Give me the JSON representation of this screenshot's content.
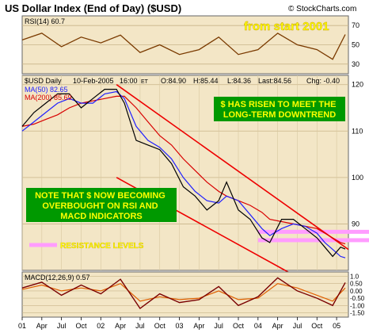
{
  "chart_data": {
    "type": "line",
    "title": "US Dollar Index (End of Day) ($USD)",
    "watermark": "© StockCharts.com",
    "headline_note": "from start 2001",
    "price_panel": {
      "label": "$USD Daily",
      "date": "10-Feb-2005",
      "time": "16:00",
      "time_zone": "ET",
      "open": "O:84.90",
      "high": "H:85.44",
      "low": "L:84.36",
      "last": "Last:84.56",
      "change": "Chg: -0.40",
      "ma50_label": "MA(50) 82.65",
      "ma200_label": "MA(200) 85.69",
      "y_ticks": [
        "120",
        "110",
        "100",
        "90"
      ],
      "ylim": [
        80,
        122
      ],
      "x": [
        2001.0,
        2001.15,
        2001.3,
        2001.45,
        2001.6,
        2001.75,
        2001.9,
        2002.05,
        2002.2,
        2002.3,
        2002.45,
        2002.6,
        2002.75,
        2002.9,
        2003.05,
        2003.2,
        2003.35,
        2003.5,
        2003.6,
        2003.75,
        2003.9,
        2004.05,
        2004.15,
        2004.3,
        2004.45,
        2004.6,
        2004.75,
        2004.85,
        2004.95,
        2005.05,
        2005.11
      ],
      "close": [
        111,
        114,
        116,
        118,
        118,
        115,
        117,
        119,
        119,
        116,
        108,
        107,
        106,
        103,
        98,
        96,
        93,
        95,
        99,
        93,
        91,
        87,
        86,
        91,
        91,
        89,
        87,
        85,
        83,
        85,
        84.6
      ],
      "ma50": [
        110,
        112,
        114,
        116,
        117,
        116,
        116,
        118,
        118.5,
        117,
        111,
        108,
        106.5,
        104,
        100,
        97,
        95,
        94.5,
        96,
        95,
        92,
        89,
        87.5,
        89,
        90,
        89.5,
        88,
        86,
        84.5,
        83,
        82.7
      ],
      "ma200": [
        111,
        111.5,
        112.5,
        113.5,
        115,
        116,
        116.5,
        117,
        117.5,
        117.5,
        115,
        112,
        109,
        107,
        104,
        101.5,
        99,
        97,
        96,
        95,
        94,
        92.5,
        91,
        90.5,
        90,
        89.5,
        89,
        88,
        87,
        86,
        85.7
      ],
      "channel_upper": [
        [
          2002.2,
          120
        ],
        [
          2005.15,
          84.5
        ]
      ],
      "channel_lower": [
        [
          2002.2,
          100
        ],
        [
          2005.15,
          72.5
        ]
      ],
      "annotations": [
        "$ HAS RISEN TO MEET THE LONG-TERM DOWNTREND",
        "NOTE THAT $ NOW BECOMING OVERBOUGHT ON RSI AND MACD INDICATORS"
      ],
      "resistance_label": "RESISTANCE LEVELS",
      "resistance_levels": [
        86.5,
        88.3
      ]
    },
    "rsi_panel": {
      "label": "RSI(14) 60.7",
      "y_ticks": [
        "70",
        "50",
        "30"
      ],
      "ylim": [
        20,
        80
      ],
      "x": [
        2001.0,
        2001.25,
        2001.5,
        2001.75,
        2002.0,
        2002.25,
        2002.5,
        2002.75,
        2003.0,
        2003.25,
        2003.5,
        2003.75,
        2004.0,
        2004.25,
        2004.5,
        2004.75,
        2004.95,
        2005.11
      ],
      "values": [
        55,
        62,
        48,
        58,
        52,
        60,
        42,
        50,
        40,
        45,
        58,
        40,
        45,
        62,
        50,
        45,
        35,
        60.7
      ]
    },
    "macd_panel": {
      "label": "MACD(12,26,9) 0.57",
      "y_ticks": [
        "1.0",
        "0.50",
        "0.00",
        "-0.50",
        "-1.00",
        "-1.50"
      ],
      "ylim": [
        -1.8,
        1.3
      ],
      "x": [
        2001.0,
        2001.25,
        2001.5,
        2001.75,
        2002.0,
        2002.25,
        2002.5,
        2002.75,
        2003.0,
        2003.25,
        2003.5,
        2003.75,
        2004.0,
        2004.25,
        2004.5,
        2004.75,
        2004.95,
        2005.11
      ],
      "macd": [
        0.2,
        0.6,
        -0.3,
        0.4,
        -0.2,
        0.8,
        -1.2,
        -0.2,
        -0.8,
        -0.6,
        0.3,
        -1.0,
        -0.4,
        0.9,
        0.0,
        -0.5,
        -1.0,
        0.57
      ],
      "signal": [
        0.1,
        0.4,
        0.0,
        0.2,
        0.0,
        0.5,
        -0.7,
        -0.4,
        -0.6,
        -0.5,
        0.0,
        -0.6,
        -0.5,
        0.5,
        0.2,
        -0.3,
        -0.7,
        0.2
      ]
    },
    "x_axis": {
      "range": [
        2001.0,
        2005.15
      ],
      "ticks": [
        {
          "x": 2001.0,
          "label": "01"
        },
        {
          "x": 2001.25,
          "label": "Apr"
        },
        {
          "x": 2001.5,
          "label": "Jul"
        },
        {
          "x": 2001.75,
          "label": "Oct"
        },
        {
          "x": 2002.0,
          "label": "02"
        },
        {
          "x": 2002.25,
          "label": "Apr"
        },
        {
          "x": 2002.5,
          "label": "Jul"
        },
        {
          "x": 2002.75,
          "label": "Oct"
        },
        {
          "x": 2003.0,
          "label": "03"
        },
        {
          "x": 2003.25,
          "label": "Apr"
        },
        {
          "x": 2003.5,
          "label": "Jul"
        },
        {
          "x": 2003.75,
          "label": "Oct"
        },
        {
          "x": 2004.0,
          "label": "04"
        },
        {
          "x": 2004.25,
          "label": "Apr"
        },
        {
          "x": 2004.5,
          "label": "Jul"
        },
        {
          "x": 2004.75,
          "label": "Oct"
        },
        {
          "x": 2005.0,
          "label": "05"
        }
      ]
    },
    "colors": {
      "panel_bg": "#f3e6c6",
      "price": "#000000",
      "ma50": "#2020ff",
      "ma200": "#d80000",
      "channel": "#ee0000",
      "resistance": "#ff9cff",
      "rsi": "#7a3a00",
      "macd": "#7a0000",
      "macd_signal": "#e06000",
      "note_bg": "#009900",
      "note_text": "#ffff00",
      "headline": "#ffff00"
    }
  }
}
